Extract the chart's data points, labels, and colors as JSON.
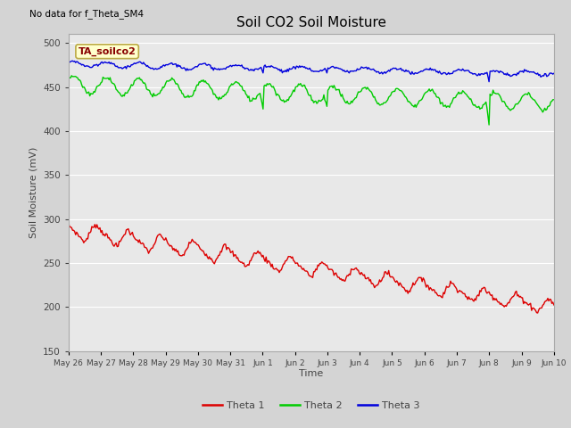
{
  "title": "Soil CO2 Soil Moisture",
  "xlabel": "Time",
  "ylabel": "Soil Moisture (mV)",
  "ylim": [
    150,
    510
  ],
  "yticks": [
    150,
    200,
    250,
    300,
    350,
    400,
    450,
    500
  ],
  "no_data_text": "No data for f_Theta_SM4",
  "annotation_text": "TA_soilco2",
  "annotation_box_color": "#ffffcc",
  "annotation_box_edge": "#bbaa44",
  "annotation_text_color": "#880000",
  "fig_bg_color": "#d4d4d4",
  "plot_bg_color": "#e8e8e8",
  "line1_color": "#dd0000",
  "line2_color": "#00cc00",
  "line3_color": "#0000dd",
  "grid_color": "#ffffff",
  "legend_labels": [
    "Theta 1",
    "Theta 2",
    "Theta 3"
  ],
  "x_tick_labels": [
    "May 26",
    "May 27",
    "May 28",
    "May 29",
    "May 30",
    "May 31",
    "Jun 1",
    "Jun 2",
    "Jun 3",
    "Jun 4",
    "Jun 5",
    "Jun 6",
    "Jun 7",
    "Jun 8",
    "Jun 9",
    "Jun 10"
  ],
  "n_points": 480,
  "figsize": [
    6.4,
    4.8
  ],
  "dpi": 100
}
